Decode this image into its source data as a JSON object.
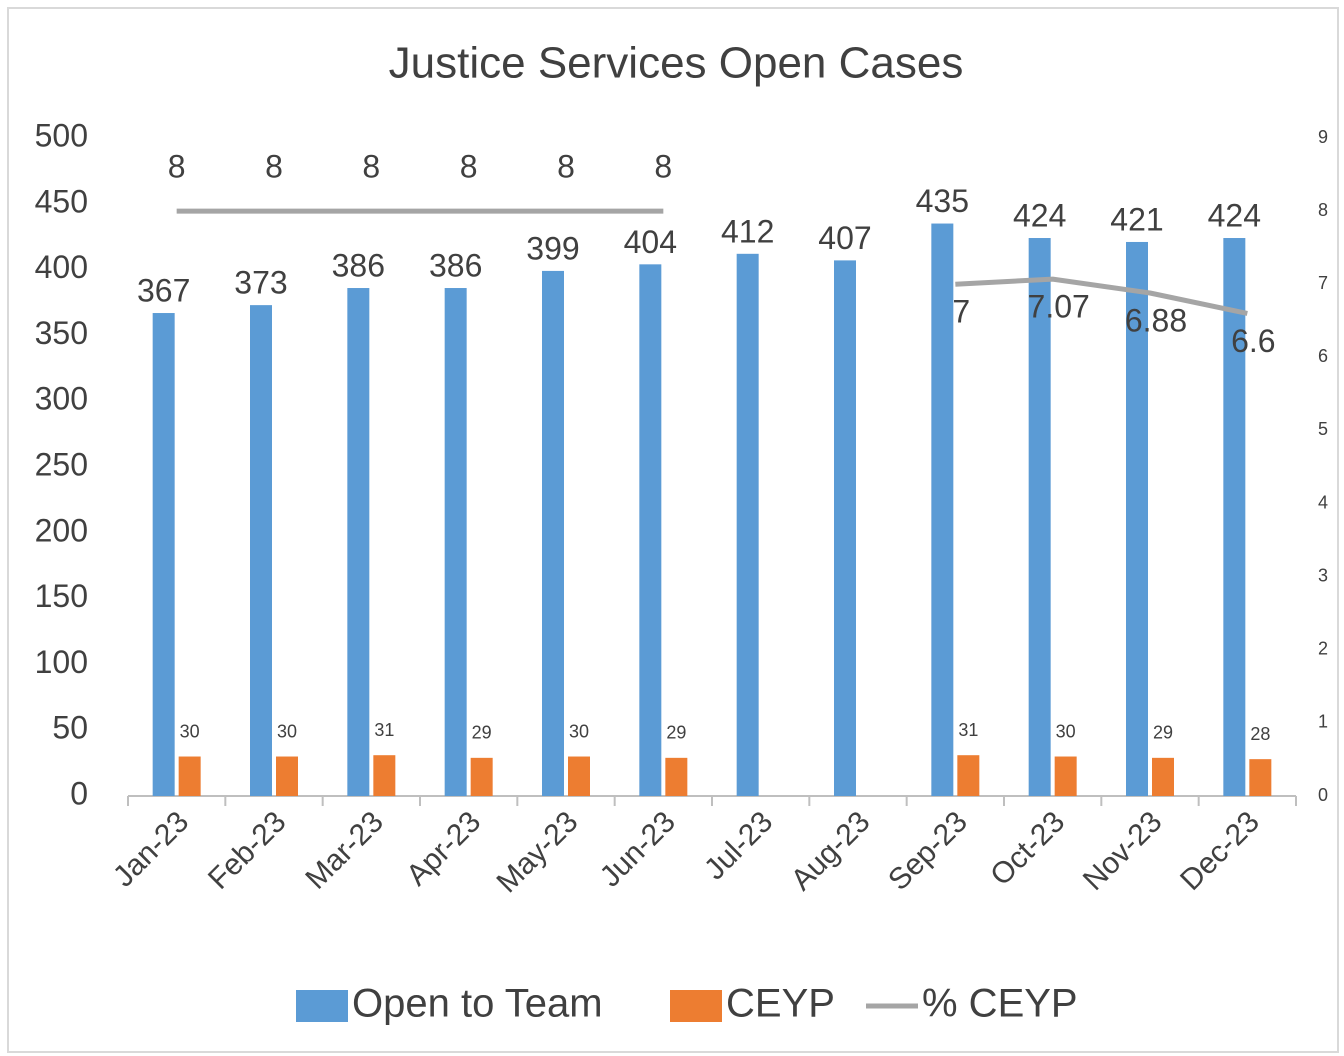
{
  "chart_data": {
    "type": "bar-line",
    "title": "Justice Services Open Cases",
    "categories": [
      "Jan-23",
      "Feb-23",
      "Mar-23",
      "Apr-23",
      "May-23",
      "Jun-23",
      "Jul-23",
      "Aug-23",
      "Sep-23",
      "Oct-23",
      "Nov-23",
      "Dec-23"
    ],
    "series": [
      {
        "name": "Open to Team",
        "type": "bar",
        "color": "#5b9bd5",
        "values": [
          367,
          373,
          386,
          386,
          399,
          404,
          412,
          407,
          435,
          424,
          421,
          424
        ]
      },
      {
        "name": "CEYP",
        "type": "bar",
        "color": "#ed7d31",
        "values": [
          30,
          30,
          31,
          29,
          30,
          29,
          null,
          null,
          31,
          30,
          29,
          28
        ]
      },
      {
        "name": "% CEYP",
        "type": "line",
        "axis": "y2",
        "color": "#a5a5a5",
        "values": [
          8,
          8,
          8,
          8,
          8,
          8,
          null,
          null,
          7,
          7.07,
          6.88,
          6.6
        ]
      }
    ],
    "ylim": [
      0,
      500
    ],
    "yticks": [
      0,
      50,
      100,
      150,
      200,
      250,
      300,
      350,
      400,
      450,
      500
    ],
    "y2lim": [
      0,
      9
    ],
    "y2ticks": [
      0,
      1,
      2,
      3,
      4,
      5,
      6,
      7,
      8,
      9
    ],
    "grid": false,
    "legend": "bottom"
  }
}
